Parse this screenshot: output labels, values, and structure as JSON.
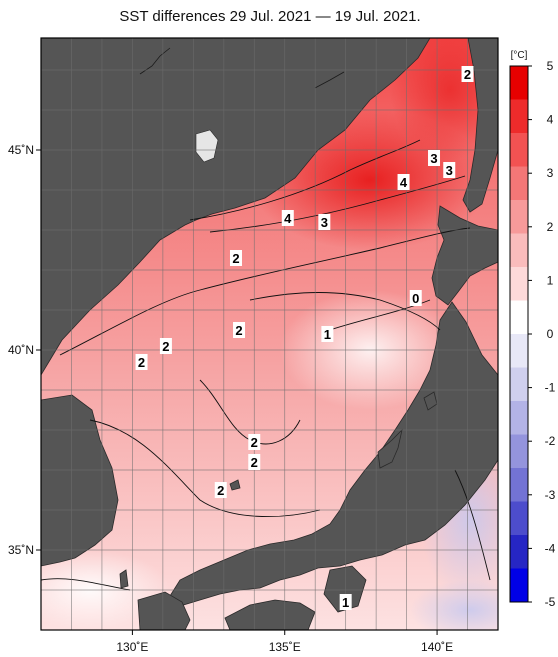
{
  "chart_data": {
    "type": "heatmap",
    "title": "SST differences 29 Jul. 2021 — 19 Jul. 2021.",
    "map_extent": {
      "lon": [
        127,
        142
      ],
      "lat": [
        33,
        47.8
      ]
    },
    "x_ticks": [
      {
        "value": 130,
        "label": "130˚E"
      },
      {
        "value": 135,
        "label": "135˚E"
      },
      {
        "value": 140,
        "label": "140˚E"
      }
    ],
    "y_ticks": [
      {
        "value": 35,
        "label": "35˚N"
      },
      {
        "value": 40,
        "label": "40˚N"
      },
      {
        "value": 45,
        "label": "45˚N"
      }
    ],
    "grid": true,
    "colorbar": {
      "unit": "[°C]",
      "range": [
        -5,
        5
      ],
      "ticks": [
        "5",
        "4",
        "3",
        "2",
        "1",
        "0",
        "-1",
        "-2",
        "-3",
        "-4",
        "-5"
      ],
      "colors": [
        "#e60000",
        "#ee2b2b",
        "#f25252",
        "#f47777",
        "#f79a9a",
        "#fabcbc",
        "#fdd9d9",
        "#ffffff",
        "#e8e8f7",
        "#cfcfee",
        "#b3b3e6",
        "#9494dd",
        "#7373d4",
        "#4d4dcc",
        "#2626c4",
        "#0000e6"
      ]
    },
    "contour_labels": [
      {
        "text": "2",
        "lon": 141.0,
        "lat": 46.9
      },
      {
        "text": "3",
        "lon": 139.9,
        "lat": 44.8
      },
      {
        "text": "3",
        "lon": 140.4,
        "lat": 44.5
      },
      {
        "text": "4",
        "lon": 138.9,
        "lat": 44.2
      },
      {
        "text": "4",
        "lon": 135.1,
        "lat": 43.3
      },
      {
        "text": "3",
        "lon": 136.3,
        "lat": 43.2
      },
      {
        "text": "2",
        "lon": 133.4,
        "lat": 42.3
      },
      {
        "text": "2",
        "lon": 133.5,
        "lat": 40.5
      },
      {
        "text": "0",
        "lon": 139.3,
        "lat": 41.3
      },
      {
        "text": "1",
        "lon": 136.4,
        "lat": 40.4
      },
      {
        "text": "2",
        "lon": 131.1,
        "lat": 40.1
      },
      {
        "text": "2",
        "lon": 130.3,
        "lat": 39.7
      },
      {
        "text": "2",
        "lon": 134.0,
        "lat": 37.7
      },
      {
        "text": "2",
        "lon": 134.0,
        "lat": 37.2
      },
      {
        "text": "2",
        "lon": 132.9,
        "lat": 36.5
      },
      {
        "text": "1",
        "lon": 137.0,
        "lat": 33.7
      }
    ]
  }
}
